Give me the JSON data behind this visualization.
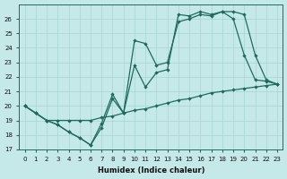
{
  "xlabel": "Humidex (Indice chaleur)",
  "bg_color": "#c5e8e8",
  "line_color": "#1e6b5e",
  "xlim_min": -0.5,
  "xlim_max": 23.5,
  "ylim_min": 17,
  "ylim_max": 27,
  "yticks": [
    17,
    18,
    19,
    20,
    21,
    22,
    23,
    24,
    25,
    26
  ],
  "xticks": [
    0,
    1,
    2,
    3,
    4,
    5,
    6,
    7,
    8,
    9,
    10,
    11,
    12,
    13,
    14,
    15,
    16,
    17,
    18,
    19,
    20,
    21,
    22,
    23
  ],
  "line1_x": [
    0,
    1,
    2,
    3,
    4,
    5,
    6,
    7,
    8,
    9,
    10,
    11,
    12,
    13,
    14,
    15,
    16,
    17,
    18,
    19,
    20,
    21,
    22,
    23
  ],
  "line1_y": [
    20.0,
    19.5,
    19.0,
    19.0,
    19.0,
    19.0,
    19.0,
    19.2,
    19.3,
    19.5,
    19.7,
    19.8,
    20.0,
    20.2,
    20.4,
    20.5,
    20.7,
    20.9,
    21.0,
    21.1,
    21.2,
    21.3,
    21.4,
    21.5
  ],
  "line2_x": [
    0,
    1,
    2,
    3,
    4,
    5,
    6,
    7,
    8,
    9,
    10,
    11,
    12,
    13,
    14,
    15,
    16,
    17,
    18,
    19,
    20,
    21,
    22,
    23
  ],
  "line2_y": [
    20.0,
    19.5,
    19.0,
    18.7,
    18.2,
    17.8,
    17.3,
    18.5,
    20.5,
    19.5,
    24.5,
    24.3,
    22.8,
    23.0,
    25.8,
    26.0,
    26.3,
    26.2,
    26.5,
    26.0,
    23.5,
    21.8,
    21.7,
    21.5
  ],
  "line3_x": [
    0,
    1,
    2,
    3,
    4,
    5,
    6,
    7,
    8,
    9,
    10,
    11,
    12,
    13,
    14,
    15,
    16,
    17,
    18,
    19,
    20,
    21,
    22,
    23
  ],
  "line3_y": [
    20.0,
    19.5,
    19.0,
    18.7,
    18.2,
    17.8,
    17.3,
    18.8,
    20.8,
    19.5,
    22.8,
    21.3,
    22.3,
    22.5,
    26.3,
    26.2,
    26.5,
    26.3,
    26.5,
    26.5,
    26.3,
    23.5,
    21.8,
    21.5
  ]
}
